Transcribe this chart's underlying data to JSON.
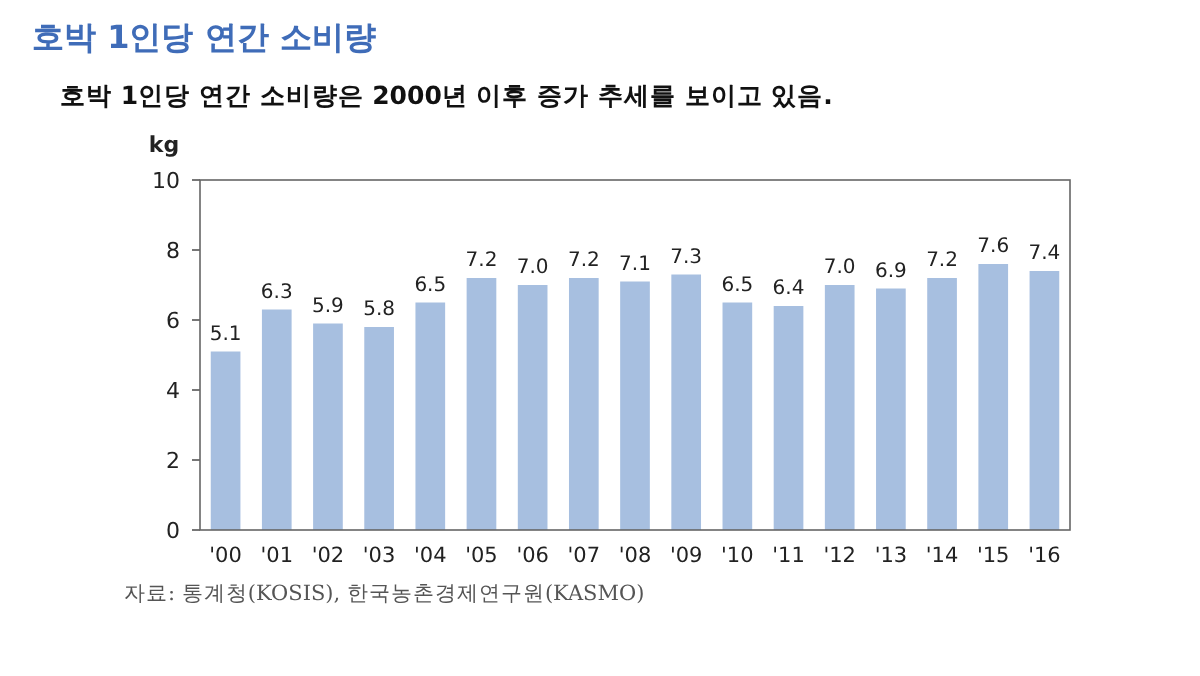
{
  "chart_data": {
    "type": "bar",
    "title": "호박 1인당 연간 소비량",
    "subtitle": "호박 1인당 연간 소비량은 2000년 이후 증가 추세를 보이고 있음.",
    "ylabel": "kg",
    "categories": [
      "'00",
      "'01",
      "'02",
      "'03",
      "'04",
      "'05",
      "'06",
      "'07",
      "'08",
      "'09",
      "'10",
      "'11",
      "'12",
      "'13",
      "'14",
      "'15",
      "'16"
    ],
    "values": [
      5.1,
      6.3,
      5.9,
      5.8,
      6.5,
      7.2,
      7.0,
      7.2,
      7.1,
      7.3,
      6.5,
      6.4,
      7.0,
      6.9,
      7.2,
      7.6,
      7.4
    ],
    "color": "#a7bfe0",
    "ylim": [
      0,
      10
    ],
    "yticks": [
      0,
      2,
      4,
      6,
      8,
      10
    ],
    "value_labels": [
      "5.1",
      "6.3",
      "5.9",
      "5.8",
      "6.5",
      "7.2",
      "7.0",
      "7.2",
      "7.1",
      "7.3",
      "6.5",
      "6.4",
      "7.0",
      "6.9",
      "7.2",
      "7.6",
      "7.4"
    ],
    "grid": false,
    "annotations": [
      "자료: 통계청(KOSIS), 한국농촌경제연구원(KASMO)"
    ]
  }
}
